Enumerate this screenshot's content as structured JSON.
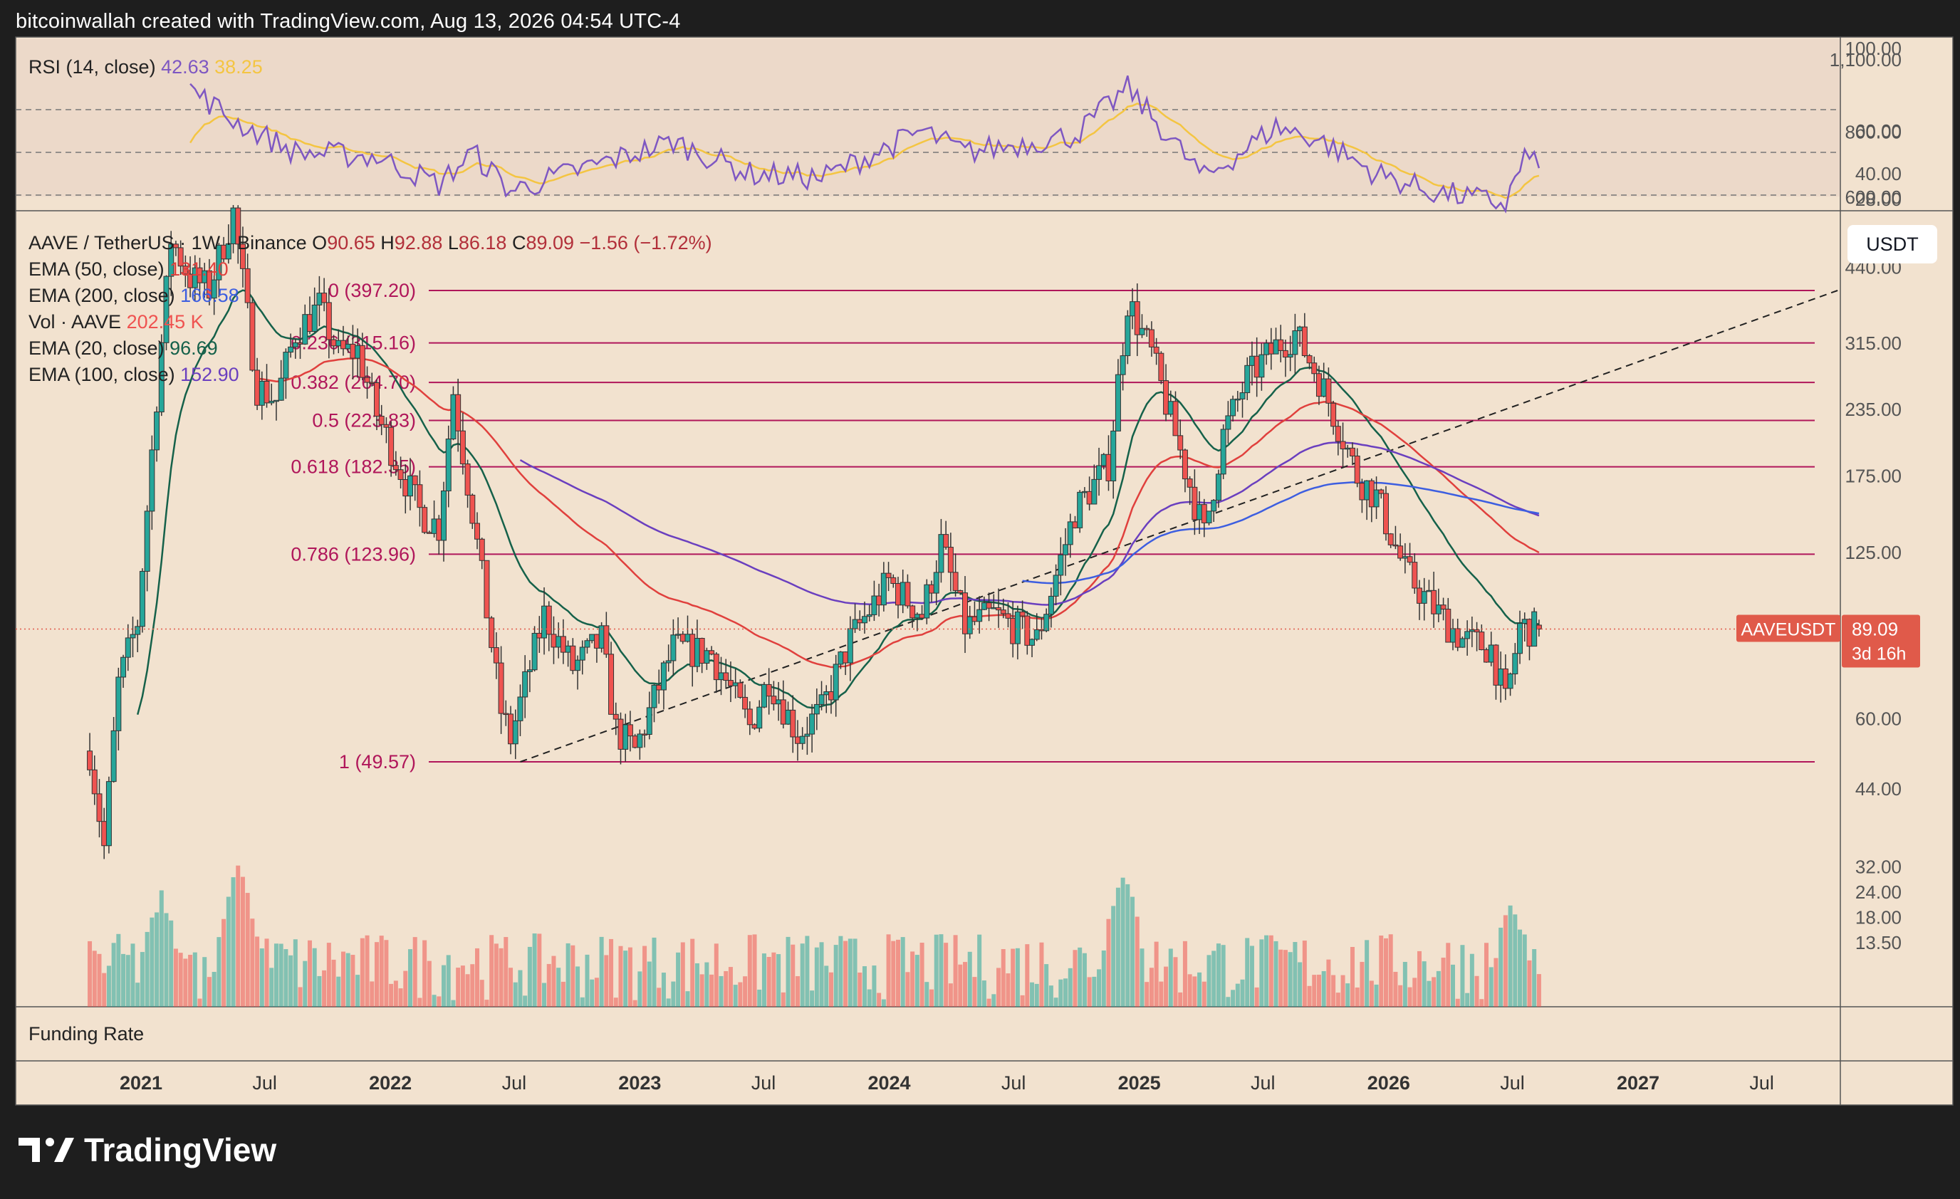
{
  "header": {
    "text": "bitcoinwallah created with TradingView.com, Aug 13, 2026 04:54 UTC-4"
  },
  "brand": {
    "name": "TradingView"
  },
  "currency_button": {
    "label": "USDT"
  },
  "colors": {
    "background": "#f2e2cf",
    "up": "#26a69a",
    "down": "#ef5350",
    "ema50": "#e0403d",
    "ema200": "#3d5ee0",
    "ema20": "#15614a",
    "ema100": "#6a3fbf",
    "fib": "#b0165a",
    "rsi": "#7e57c2",
    "rsi_ma": "#f4c542",
    "price_tag": "#e05a4a"
  },
  "legend": {
    "symbol": "AAVE / TetherUS · 1W · Binance",
    "o_label": "O",
    "o": "90.65",
    "h_label": "H",
    "h": "92.88",
    "l_label": "L",
    "l": "86.18",
    "c_label": "C",
    "c": "89.09",
    "change": "−1.56 (−1.72%)",
    "indicators": [
      {
        "name": "EMA (50, close)",
        "value": "131.40",
        "color": "#e0403d"
      },
      {
        "name": "EMA (200, close)",
        "value": "166.58",
        "color": "#3d5ee0"
      },
      {
        "name": "Vol · AAVE",
        "value": "202.45 K",
        "color": "#ef5350"
      },
      {
        "name": "EMA (20, close)",
        "value": "96.69",
        "color": "#15614a"
      },
      {
        "name": "EMA (100, close)",
        "value": "152.90",
        "color": "#6a3fbf"
      }
    ]
  },
  "rsi": {
    "label": "RSI (14, close)",
    "value": "42.63",
    "ma_value": "38.25"
  },
  "funding": {
    "label": "Funding Rate"
  },
  "price_tag": {
    "symbol": "AAVEUSDT",
    "price": "89.09",
    "countdown": "3d 16h"
  },
  "chart_data": {
    "type": "candlestick",
    "scale": "log",
    "title": "AAVE / TetherUS · 1W · Binance",
    "y_ticks": [
      44,
      60,
      125,
      175,
      235,
      315,
      440,
      600,
      800,
      1100
    ],
    "y_tick_labels": [
      "44.00",
      "60.00",
      "125.00",
      "175.00",
      "235.00",
      "315.00",
      "440.00",
      "600.00",
      "800.00",
      "1,100.00"
    ],
    "volume_ticks": [
      "13.50",
      "18.00",
      "24.00",
      "32.00"
    ],
    "rsi_ticks": [
      28,
      40,
      60,
      100
    ],
    "rsi_tick_labels": [
      "28.00",
      "40.00",
      "60.00",
      "100.00"
    ],
    "rsi_levels": [
      30,
      50,
      70
    ],
    "x_ticks": [
      {
        "label": "2021",
        "bold": true,
        "date": "2021-01-01"
      },
      {
        "label": "Jul",
        "bold": false,
        "date": "2021-07-01"
      },
      {
        "label": "2022",
        "bold": true,
        "date": "2022-01-01"
      },
      {
        "label": "Jul",
        "bold": false,
        "date": "2022-07-01"
      },
      {
        "label": "2023",
        "bold": true,
        "date": "2023-01-01"
      },
      {
        "label": "Jul",
        "bold": false,
        "date": "2023-07-01"
      },
      {
        "label": "2024",
        "bold": true,
        "date": "2024-01-01"
      },
      {
        "label": "Jul",
        "bold": false,
        "date": "2024-07-01"
      },
      {
        "label": "2025",
        "bold": true,
        "date": "2025-01-01"
      },
      {
        "label": "Jul",
        "bold": false,
        "date": "2025-07-01"
      },
      {
        "label": "2026",
        "bold": true,
        "date": "2026-01-01"
      },
      {
        "label": "Jul",
        "bold": false,
        "date": "2026-07-01"
      },
      {
        "label": "2027",
        "bold": true,
        "date": "2027-01-01"
      },
      {
        "label": "Jul",
        "bold": false,
        "date": "2027-07-01"
      }
    ],
    "fib_levels": [
      {
        "label": "0 (397.20)",
        "price": 397.2
      },
      {
        "label": "0.236 (315.16)",
        "price": 315.16
      },
      {
        "label": "0.382 (264.70)",
        "price": 264.7
      },
      {
        "label": "0.5 (223.83)",
        "price": 223.83
      },
      {
        "label": "0.618 (182.35)",
        "price": 182.35
      },
      {
        "label": "0.786 (123.96)",
        "price": 123.96
      },
      {
        "label": "1 (49.57)",
        "price": 49.57
      }
    ],
    "trendline": [
      {
        "date": "2022-07-10",
        "price": 49.57
      },
      {
        "date": "2027-10-20",
        "price": 397.2
      }
    ],
    "price_anchors": [
      [
        "2020-10-18",
        52
      ],
      [
        "2020-11-08",
        34
      ],
      [
        "2020-11-29",
        70
      ],
      [
        "2020-12-27",
        92
      ],
      [
        "2021-01-24",
        250
      ],
      [
        "2021-02-14",
        500
      ],
      [
        "2021-03-14",
        420
      ],
      [
        "2021-04-11",
        400
      ],
      [
        "2021-05-16",
        560
      ],
      [
        "2021-06-20",
        260
      ],
      [
        "2021-07-18",
        245
      ],
      [
        "2021-08-15",
        330
      ],
      [
        "2021-09-19",
        370
      ],
      [
        "2021-10-17",
        300
      ],
      [
        "2021-11-14",
        305
      ],
      [
        "2021-12-12",
        230
      ],
      [
        "2022-01-16",
        180
      ],
      [
        "2022-02-13",
        150
      ],
      [
        "2022-03-13",
        140
      ],
      [
        "2022-04-03",
        255
      ],
      [
        "2022-05-01",
        150
      ],
      [
        "2022-06-12",
        62
      ],
      [
        "2022-06-26",
        55
      ],
      [
        "2022-08-14",
        95
      ],
      [
        "2022-09-25",
        75
      ],
      [
        "2022-11-06",
        85
      ],
      [
        "2022-11-27",
        57
      ],
      [
        "2022-12-25",
        52
      ],
      [
        "2023-02-19",
        82
      ],
      [
        "2023-04-16",
        80
      ],
      [
        "2023-06-11",
        58
      ],
      [
        "2023-07-09",
        72
      ],
      [
        "2023-08-20",
        56
      ],
      [
        "2023-09-24",
        62
      ],
      [
        "2023-11-05",
        85
      ],
      [
        "2023-12-31",
        110
      ],
      [
        "2024-02-18",
        95
      ],
      [
        "2024-03-17",
        130
      ],
      [
        "2024-04-21",
        90
      ],
      [
        "2024-06-02",
        95
      ],
      [
        "2024-08-04",
        85
      ],
      [
        "2024-09-29",
        150
      ],
      [
        "2024-11-17",
        185
      ],
      [
        "2024-12-15",
        380
      ],
      [
        "2025-01-19",
        300
      ],
      [
        "2025-02-23",
        210
      ],
      [
        "2025-04-06",
        135
      ],
      [
        "2025-05-04",
        210
      ],
      [
        "2025-06-08",
        270
      ],
      [
        "2025-07-20",
        310
      ],
      [
        "2025-08-17",
        330
      ],
      [
        "2025-09-21",
        270
      ],
      [
        "2025-10-19",
        220
      ],
      [
        "2025-11-16",
        175
      ],
      [
        "2025-12-14",
        160
      ],
      [
        "2026-01-25",
        115
      ],
      [
        "2026-03-01",
        100
      ],
      [
        "2026-04-19",
        85
      ],
      [
        "2026-05-31",
        82
      ],
      [
        "2026-06-21",
        64
      ],
      [
        "2026-07-12",
        90
      ],
      [
        "2026-08-09",
        89.09
      ]
    ],
    "volume_peaks": [
      {
        "date": "2021-01-31",
        "value": 22
      },
      {
        "date": "2021-05-23",
        "value": 30
      },
      {
        "date": "2024-12-08",
        "value": 28
      },
      {
        "date": "2026-06-28",
        "value": 19
      }
    ],
    "rsi_anchors": [
      [
        "2021-03-14",
        80
      ],
      [
        "2021-05-16",
        65
      ],
      [
        "2021-08-15",
        50
      ],
      [
        "2021-12-12",
        48
      ],
      [
        "2022-03-13",
        35
      ],
      [
        "2022-05-01",
        50
      ],
      [
        "2022-06-26",
        32
      ],
      [
        "2022-11-06",
        45
      ],
      [
        "2023-02-19",
        55
      ],
      [
        "2023-06-11",
        40
      ],
      [
        "2023-09-24",
        38
      ],
      [
        "2024-02-18",
        60
      ],
      [
        "2024-04-21",
        50
      ],
      [
        "2024-09-29",
        58
      ],
      [
        "2024-12-15",
        80
      ],
      [
        "2025-04-06",
        38
      ],
      [
        "2025-07-20",
        62
      ],
      [
        "2025-09-21",
        56
      ],
      [
        "2025-12-14",
        40
      ],
      [
        "2026-03-01",
        32
      ],
      [
        "2026-06-21",
        26
      ],
      [
        "2026-07-19",
        48
      ],
      [
        "2026-08-09",
        42.63
      ]
    ]
  }
}
